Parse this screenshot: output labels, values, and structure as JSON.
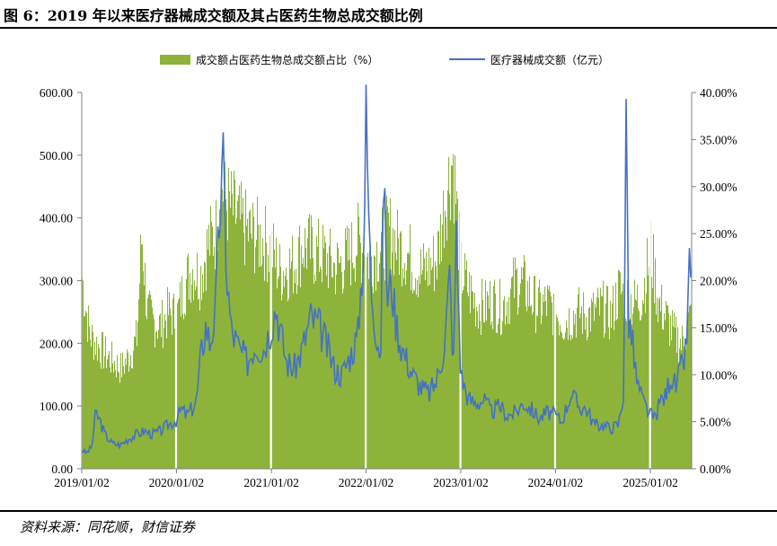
{
  "title": "图 6：2019 年以来医疗器械成交额及其占医药生物总成交额比例",
  "source": "资料来源：同花顺，财信证券",
  "chart_data": {
    "type": "bar+line",
    "legend_position": "top",
    "grid": false,
    "x_ticks": [
      "2019/01/02",
      "2020/01/02",
      "2021/01/02",
      "2022/01/02",
      "2023/01/02",
      "2024/01/02",
      "2025/01/02"
    ],
    "x_range": [
      "2019-01-02",
      "2025-06-10"
    ],
    "left_axis": {
      "ticks": [
        "0.00",
        "100.00",
        "200.00",
        "300.00",
        "400.00",
        "500.00",
        "600.00"
      ],
      "range": [
        0,
        600
      ]
    },
    "right_axis": {
      "ticks": [
        "0.00%",
        "5.00%",
        "10.00%",
        "15.00%",
        "20.00%",
        "25.00%",
        "30.00%",
        "35.00%",
        "40.00%"
      ],
      "range": [
        0,
        40
      ]
    },
    "series": [
      {
        "name": "成交额占医药生物总成交额占比（%）",
        "type": "bar",
        "axis": "right",
        "color": "#8db33a",
        "points": [
          [
            "2019-01-02",
            21.5
          ],
          [
            "2019-01-15",
            18.2
          ],
          [
            "2019-02-01",
            15.0
          ],
          [
            "2019-03-01",
            13.8
          ],
          [
            "2019-04-01",
            12.8
          ],
          [
            "2019-05-01",
            12.0
          ],
          [
            "2019-06-01",
            11.2
          ],
          [
            "2019-07-01",
            12.5
          ],
          [
            "2019-08-01",
            14.5
          ],
          [
            "2019-08-20",
            26.5
          ],
          [
            "2019-09-10",
            17.5
          ],
          [
            "2019-10-01",
            16.5
          ],
          [
            "2019-11-01",
            16.0
          ],
          [
            "2019-12-01",
            17.5
          ],
          [
            "2020-01-02",
            17.0
          ],
          [
            "2020-02-01",
            20.5
          ],
          [
            "2020-03-01",
            22.5
          ],
          [
            "2020-04-01",
            21.5
          ],
          [
            "2020-05-01",
            25.0
          ],
          [
            "2020-06-01",
            26.5
          ],
          [
            "2020-06-20",
            33.0
          ],
          [
            "2020-07-05",
            30.0
          ],
          [
            "2020-08-01",
            29.0
          ],
          [
            "2020-09-01",
            27.5
          ],
          [
            "2020-10-01",
            26.5
          ],
          [
            "2020-11-01",
            26.0
          ],
          [
            "2020-12-01",
            25.5
          ],
          [
            "2021-01-02",
            24.5
          ],
          [
            "2021-02-01",
            22.0
          ],
          [
            "2021-03-01",
            22.5
          ],
          [
            "2021-04-01",
            23.0
          ],
          [
            "2021-05-01",
            25.0
          ],
          [
            "2021-06-01",
            24.5
          ],
          [
            "2021-07-01",
            24.0
          ],
          [
            "2021-08-01",
            23.5
          ],
          [
            "2021-09-01",
            22.5
          ],
          [
            "2021-10-01",
            23.0
          ],
          [
            "2021-11-01",
            24.0
          ],
          [
            "2021-12-01",
            25.5
          ],
          [
            "2022-01-02",
            23.5
          ],
          [
            "2022-02-01",
            24.0
          ],
          [
            "2022-03-01",
            25.0
          ],
          [
            "2022-04-01",
            26.5
          ],
          [
            "2022-05-01",
            25.0
          ],
          [
            "2022-06-01",
            24.5
          ],
          [
            "2022-07-01",
            23.0
          ],
          [
            "2022-08-01",
            22.0
          ],
          [
            "2022-09-01",
            22.5
          ],
          [
            "2022-10-01",
            23.5
          ],
          [
            "2022-11-01",
            30.0
          ],
          [
            "2022-12-01",
            35.0
          ],
          [
            "2023-01-02",
            22.0
          ],
          [
            "2023-02-01",
            20.0
          ],
          [
            "2023-03-01",
            18.5
          ],
          [
            "2023-04-01",
            18.0
          ],
          [
            "2023-05-01",
            19.0
          ],
          [
            "2023-06-01",
            18.0
          ],
          [
            "2023-07-01",
            19.0
          ],
          [
            "2023-08-01",
            21.0
          ],
          [
            "2023-09-01",
            20.5
          ],
          [
            "2023-10-01",
            19.0
          ],
          [
            "2023-11-01",
            18.0
          ],
          [
            "2023-12-01",
            18.5
          ],
          [
            "2024-01-02",
            17.5
          ],
          [
            "2024-02-01",
            16.5
          ],
          [
            "2024-03-01",
            17.0
          ],
          [
            "2024-04-01",
            17.5
          ],
          [
            "2024-05-01",
            17.0
          ],
          [
            "2024-06-01",
            17.5
          ],
          [
            "2024-07-01",
            18.0
          ],
          [
            "2024-08-01",
            17.0
          ],
          [
            "2024-09-01",
            20.0
          ],
          [
            "2024-10-01",
            19.0
          ],
          [
            "2024-11-01",
            18.5
          ],
          [
            "2024-12-01",
            19.5
          ],
          [
            "2025-01-02",
            24.5
          ],
          [
            "2025-02-01",
            18.5
          ],
          [
            "2025-03-01",
            17.0
          ],
          [
            "2025-04-01",
            15.0
          ],
          [
            "2025-05-01",
            14.0
          ],
          [
            "2025-06-10",
            17.5
          ]
        ]
      },
      {
        "name": "医疗器械成交额（亿元）",
        "type": "line",
        "axis": "left",
        "color": "#4472c4",
        "points": [
          [
            "2019-01-02",
            30
          ],
          [
            "2019-01-20",
            25
          ],
          [
            "2019-02-10",
            35
          ],
          [
            "2019-02-25",
            90
          ],
          [
            "2019-03-15",
            75
          ],
          [
            "2019-04-01",
            55
          ],
          [
            "2019-05-01",
            40
          ],
          [
            "2019-06-01",
            38
          ],
          [
            "2019-07-01",
            48
          ],
          [
            "2019-08-01",
            55
          ],
          [
            "2019-09-01",
            60
          ],
          [
            "2019-10-01",
            55
          ],
          [
            "2019-11-01",
            60
          ],
          [
            "2019-12-01",
            70
          ],
          [
            "2020-01-02",
            78
          ],
          [
            "2020-01-20",
            95
          ],
          [
            "2020-02-10",
            85
          ],
          [
            "2020-03-01",
            95
          ],
          [
            "2020-03-20",
            110
          ],
          [
            "2020-04-05",
            180
          ],
          [
            "2020-04-25",
            230
          ],
          [
            "2020-05-10",
            200
          ],
          [
            "2020-06-01",
            250
          ],
          [
            "2020-06-15",
            400
          ],
          [
            "2020-07-01",
            480
          ],
          [
            "2020-07-15",
            300
          ],
          [
            "2020-08-01",
            220
          ],
          [
            "2020-09-01",
            190
          ],
          [
            "2020-10-01",
            170
          ],
          [
            "2020-11-01",
            200
          ],
          [
            "2020-12-01",
            190
          ],
          [
            "2021-01-02",
            230
          ],
          [
            "2021-01-20",
            260
          ],
          [
            "2021-02-10",
            210
          ],
          [
            "2021-03-01",
            170
          ],
          [
            "2021-04-01",
            160
          ],
          [
            "2021-05-01",
            190
          ],
          [
            "2021-06-01",
            240
          ],
          [
            "2021-07-01",
            230
          ],
          [
            "2021-08-01",
            200
          ],
          [
            "2021-09-01",
            160
          ],
          [
            "2021-10-01",
            150
          ],
          [
            "2021-11-01",
            180
          ],
          [
            "2021-12-01",
            210
          ],
          [
            "2021-12-25",
            370
          ],
          [
            "2022-01-02",
            560
          ],
          [
            "2022-01-20",
            300
          ],
          [
            "2022-02-10",
            220
          ],
          [
            "2022-03-01",
            180
          ],
          [
            "2022-03-10",
            480
          ],
          [
            "2022-03-25",
            270
          ],
          [
            "2022-04-10",
            300
          ],
          [
            "2022-04-25",
            240
          ],
          [
            "2022-05-15",
            200
          ],
          [
            "2022-06-01",
            180
          ],
          [
            "2022-07-01",
            150
          ],
          [
            "2022-08-01",
            130
          ],
          [
            "2022-09-01",
            120
          ],
          [
            "2022-10-01",
            140
          ],
          [
            "2022-11-01",
            200
          ],
          [
            "2022-11-20",
            310
          ],
          [
            "2022-12-05",
            160
          ],
          [
            "2022-12-15",
            380
          ],
          [
            "2022-12-25",
            260
          ],
          [
            "2023-01-02",
            150
          ],
          [
            "2023-02-01",
            110
          ],
          [
            "2023-03-01",
            105
          ],
          [
            "2023-04-01",
            110
          ],
          [
            "2023-05-01",
            90
          ],
          [
            "2023-06-01",
            100
          ],
          [
            "2023-07-01",
            85
          ],
          [
            "2023-08-01",
            90
          ],
          [
            "2023-09-01",
            105
          ],
          [
            "2023-10-01",
            95
          ],
          [
            "2023-11-01",
            80
          ],
          [
            "2023-12-01",
            90
          ],
          [
            "2024-01-02",
            85
          ],
          [
            "2024-01-25",
            75
          ],
          [
            "2024-02-15",
            100
          ],
          [
            "2024-03-01",
            120
          ],
          [
            "2024-04-01",
            100
          ],
          [
            "2024-05-01",
            95
          ],
          [
            "2024-06-01",
            70
          ],
          [
            "2024-07-01",
            70
          ],
          [
            "2024-08-01",
            65
          ],
          [
            "2024-09-01",
            70
          ],
          [
            "2024-09-20",
            120
          ],
          [
            "2024-10-01",
            570
          ],
          [
            "2024-10-10",
            240
          ],
          [
            "2024-10-25",
            200
          ],
          [
            "2024-11-10",
            140
          ],
          [
            "2024-12-01",
            110
          ],
          [
            "2025-01-02",
            85
          ],
          [
            "2025-01-20",
            80
          ],
          [
            "2025-02-10",
            110
          ],
          [
            "2025-03-01",
            115
          ],
          [
            "2025-03-20",
            150
          ],
          [
            "2025-04-10",
            130
          ],
          [
            "2025-05-01",
            160
          ],
          [
            "2025-05-20",
            190
          ],
          [
            "2025-06-01",
            320
          ],
          [
            "2025-06-10",
            300
          ]
        ]
      }
    ]
  }
}
